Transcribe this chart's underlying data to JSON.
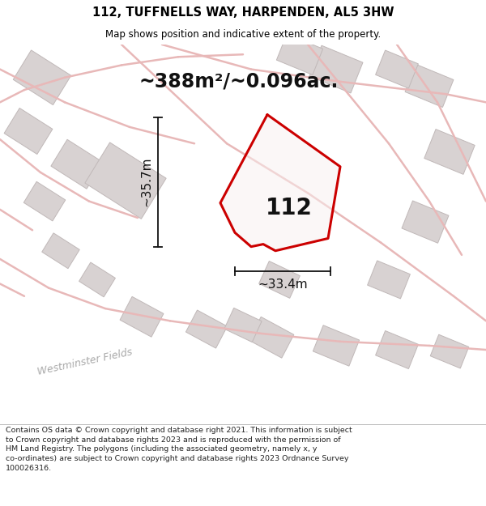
{
  "title": "112, TUFFNELLS WAY, HARPENDEN, AL5 3HW",
  "subtitle": "Map shows position and indicative extent of the property.",
  "area_text": "~388m²/~0.096ac.",
  "property_number": "112",
  "dim_width": "~33.4m",
  "dim_height": "~35.7m",
  "footer": "Contains OS data © Crown copyright and database right 2021. This information is subject to Crown copyright and database rights 2023 and is reproduced with the permission of HM Land Registry. The polygons (including the associated geometry, namely x, y co-ordinates) are subject to Crown copyright and database rights 2023 Ordnance Survey 100026316.",
  "map_bg": "#f2efef",
  "road_color": "#e8b8b8",
  "road_lw": 1.8,
  "plot_color": "#cc0000",
  "plot_fill": "#ffffff",
  "plot_fill_alpha": 0.0,
  "building_edge": "#c0b8b8",
  "building_fill": "#d8d2d2",
  "title_fontsize": 10.5,
  "subtitle_fontsize": 8.5,
  "area_fontsize": 17,
  "number_fontsize": 20,
  "dim_fontsize": 11,
  "footer_fontsize": 6.8,
  "westminster_fontsize": 9,
  "title_color": "#000000",
  "footer_color": "#222222",
  "dim_color": "#111111",
  "map_text_color": "#888888"
}
